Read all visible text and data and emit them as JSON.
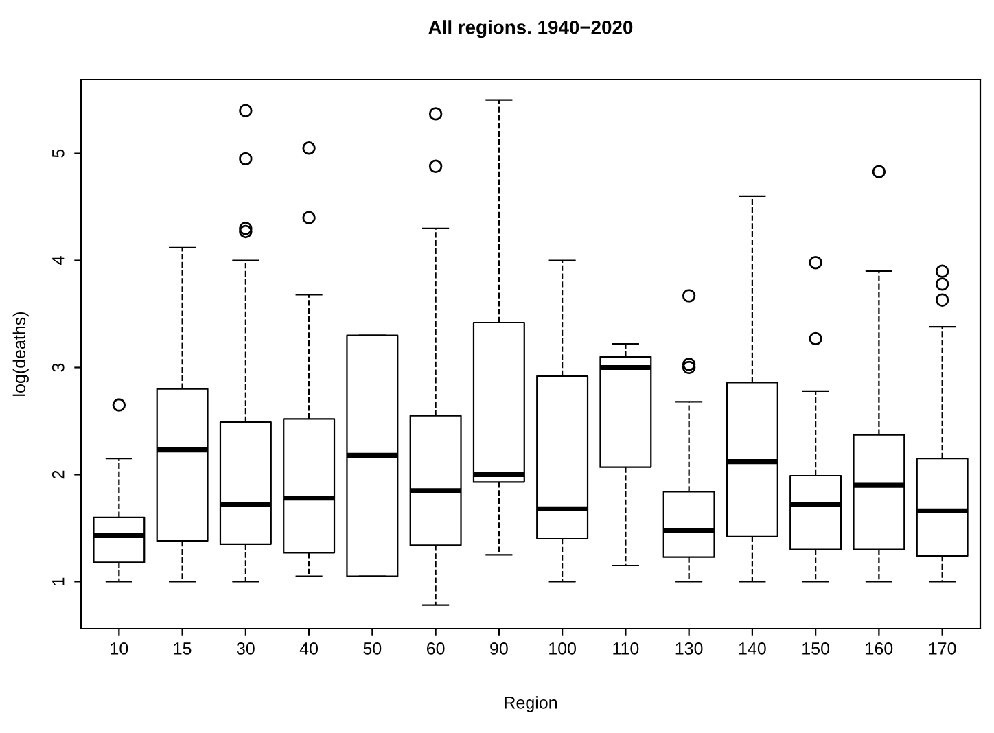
{
  "chart_data": {
    "type": "box",
    "title": "All regions. 1940−2020",
    "xlabel": "Region",
    "ylabel": "log(deaths)",
    "categories": [
      "10",
      "15",
      "30",
      "40",
      "50",
      "60",
      "90",
      "100",
      "110",
      "130",
      "140",
      "150",
      "160",
      "170"
    ],
    "ylim": [
      0.56,
      5.69
    ],
    "yticks": [
      1,
      2,
      3,
      4,
      5
    ],
    "grid": false,
    "legend": false,
    "line_style": "dashed",
    "marker": "circle",
    "boxes": [
      {
        "low": 1.0,
        "q1": 1.18,
        "median": 1.43,
        "q3": 1.6,
        "high": 2.15,
        "outliers": [
          2.65
        ]
      },
      {
        "low": 1.0,
        "q1": 1.38,
        "median": 2.23,
        "q3": 2.8,
        "high": 4.12
      },
      {
        "low": 1.0,
        "q1": 1.35,
        "median": 1.72,
        "q3": 2.49,
        "high": 4.0,
        "outliers": [
          4.27,
          4.3,
          4.95,
          5.4
        ]
      },
      {
        "low": 1.05,
        "q1": 1.27,
        "median": 1.78,
        "q3": 2.52,
        "high": 3.68,
        "outliers": [
          4.4,
          5.05
        ]
      },
      {
        "low": 1.05,
        "q1": 1.05,
        "median": 2.18,
        "q3": 3.3,
        "high": 3.3
      },
      {
        "low": 0.78,
        "q1": 1.34,
        "median": 1.85,
        "q3": 2.55,
        "high": 4.3,
        "outliers": [
          4.88,
          5.37
        ]
      },
      {
        "low": 1.25,
        "q1": 1.93,
        "median": 2.0,
        "q3": 3.42,
        "high": 5.5
      },
      {
        "low": 1.0,
        "q1": 1.4,
        "median": 1.68,
        "q3": 2.92,
        "high": 4.0
      },
      {
        "low": 1.15,
        "q1": 2.07,
        "median": 3.0,
        "q3": 3.1,
        "high": 3.22
      },
      {
        "low": 1.0,
        "q1": 1.23,
        "median": 1.48,
        "q3": 1.84,
        "high": 2.68,
        "outliers": [
          3.0,
          3.03,
          3.67
        ]
      },
      {
        "low": 1.0,
        "q1": 1.42,
        "median": 2.12,
        "q3": 2.86,
        "high": 4.6
      },
      {
        "low": 1.0,
        "q1": 1.3,
        "median": 1.72,
        "q3": 1.99,
        "high": 2.78,
        "outliers": [
          3.27,
          3.98
        ]
      },
      {
        "low": 1.0,
        "q1": 1.3,
        "median": 1.9,
        "q3": 2.37,
        "high": 3.9,
        "outliers": [
          4.83
        ]
      },
      {
        "low": 1.0,
        "q1": 1.24,
        "median": 1.66,
        "q3": 2.15,
        "high": 3.38,
        "outliers": [
          3.63,
          3.78,
          3.9
        ]
      }
    ]
  }
}
